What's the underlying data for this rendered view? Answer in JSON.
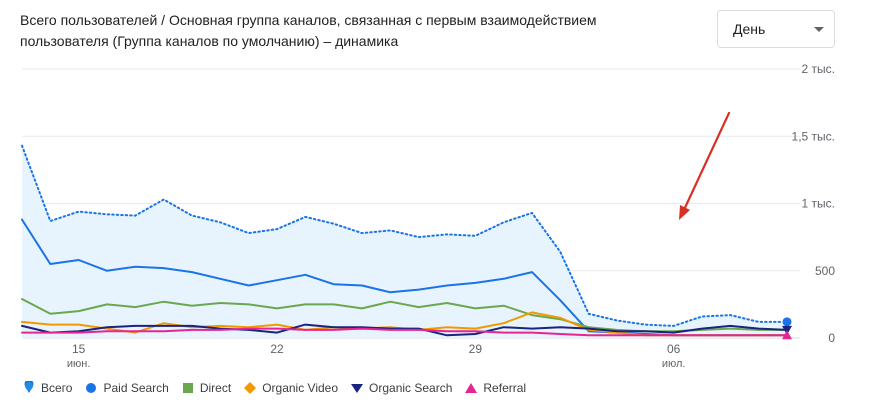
{
  "header": {
    "title_line1": "Всего пользователей / Основная группа каналов, связанная с первым взаимодействием",
    "title_line2": "пользователя (Группа каналов по умолчанию) – динамика"
  },
  "granularity_select": {
    "value": "День"
  },
  "colors": {
    "total": "#1a73e8",
    "total_fill": "#e8f4fd",
    "paid_search": "#1a73e8",
    "direct": "#6aa84f",
    "organic_video": "#f29900",
    "organic_search": "#1a237e",
    "referral": "#e52592",
    "annotation_arrow": "#d93025",
    "grid": "#e8eaed",
    "axis_text": "#5f6368"
  },
  "chart_data": {
    "type": "line",
    "x": [
      "2024-06-13",
      "2024-06-14",
      "2024-06-15",
      "2024-06-16",
      "2024-06-17",
      "2024-06-18",
      "2024-06-19",
      "2024-06-20",
      "2024-06-21",
      "2024-06-22",
      "2024-06-23",
      "2024-06-24",
      "2024-06-25",
      "2024-06-26",
      "2024-06-27",
      "2024-06-28",
      "2024-06-29",
      "2024-06-30",
      "2024-07-01",
      "2024-07-02",
      "2024-07-03",
      "2024-07-04",
      "2024-07-05",
      "2024-07-06",
      "2024-07-07",
      "2024-07-08",
      "2024-07-09",
      "2024-07-10"
    ],
    "ylim": [
      0,
      2000
    ],
    "y_ticks": [
      {
        "value": 0,
        "label": "0"
      },
      {
        "value": 500,
        "label": "500"
      },
      {
        "value": 1000,
        "label": "1 тыс."
      },
      {
        "value": 1500,
        "label": "1,5 тыс."
      },
      {
        "value": 2000,
        "label": "2 тыс."
      }
    ],
    "x_ticks": [
      {
        "x": "2024-06-15",
        "label": "15",
        "sublabel": "июн."
      },
      {
        "x": "2024-06-22",
        "label": "22",
        "sublabel": ""
      },
      {
        "x": "2024-06-29",
        "label": "29",
        "sublabel": ""
      },
      {
        "x": "2024-07-06",
        "label": "06",
        "sublabel": "июл."
      }
    ],
    "grid": true,
    "legend_position": "bottom-left",
    "series": [
      {
        "key": "total",
        "name": "Всего",
        "style": "dotted",
        "marker": "pin",
        "values": [
          1430,
          870,
          940,
          920,
          910,
          1030,
          910,
          860,
          780,
          810,
          900,
          850,
          780,
          800,
          750,
          770,
          760,
          860,
          930,
          640,
          180,
          130,
          100,
          90,
          160,
          170,
          120,
          120
        ]
      },
      {
        "key": "paid_search",
        "name": "Paid Search",
        "style": "solid",
        "marker": "circle",
        "values": [
          880,
          550,
          580,
          500,
          530,
          520,
          490,
          440,
          390,
          430,
          470,
          400,
          390,
          340,
          360,
          390,
          410,
          440,
          490,
          280,
          50,
          40,
          30,
          20,
          20,
          20,
          20,
          20
        ]
      },
      {
        "key": "direct",
        "name": "Direct",
        "style": "solid",
        "marker": "square",
        "values": [
          290,
          180,
          200,
          250,
          230,
          270,
          240,
          260,
          250,
          220,
          250,
          250,
          220,
          270,
          230,
          260,
          220,
          240,
          170,
          140,
          80,
          60,
          50,
          50,
          60,
          70,
          60,
          60
        ]
      },
      {
        "key": "organic_video",
        "name": "Organic Video",
        "style": "solid",
        "marker": "diamond",
        "values": [
          120,
          100,
          100,
          70,
          40,
          110,
          80,
          90,
          80,
          100,
          60,
          80,
          70,
          80,
          60,
          80,
          70,
          110,
          190,
          150,
          60,
          40,
          20,
          20,
          20,
          20,
          20,
          20
        ]
      },
      {
        "key": "organic_search",
        "name": "Organic Search",
        "style": "solid",
        "marker": "triangle-down",
        "values": [
          90,
          40,
          50,
          80,
          90,
          90,
          90,
          70,
          60,
          40,
          100,
          80,
          80,
          70,
          70,
          20,
          30,
          80,
          70,
          80,
          70,
          50,
          50,
          40,
          70,
          90,
          70,
          60
        ]
      },
      {
        "key": "referral",
        "name": "Referral",
        "style": "solid",
        "marker": "triangle-up",
        "values": [
          40,
          40,
          40,
          50,
          50,
          50,
          60,
          60,
          70,
          70,
          60,
          60,
          70,
          60,
          60,
          50,
          50,
          40,
          40,
          30,
          20,
          20,
          20,
          20,
          20,
          20,
          20,
          20
        ]
      }
    ]
  }
}
